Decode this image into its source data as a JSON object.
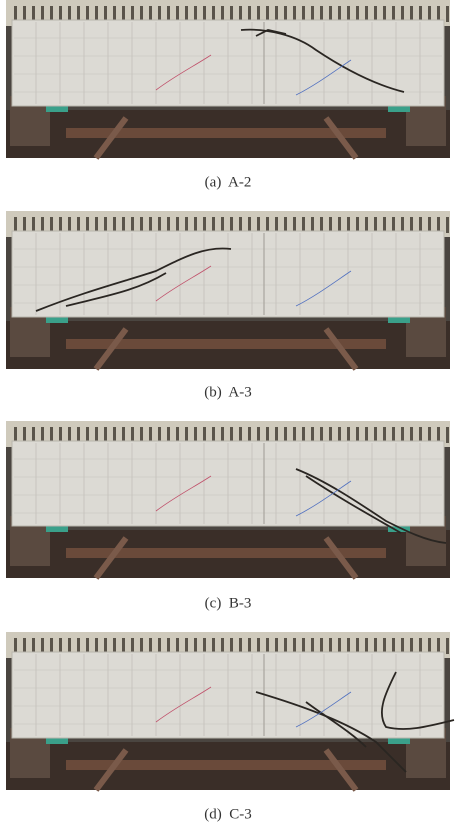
{
  "figure": {
    "captions": [
      "(a)  A-2",
      "(b)  A-3",
      "(c)  B-3",
      "(d)  C-3"
    ]
  }
}
